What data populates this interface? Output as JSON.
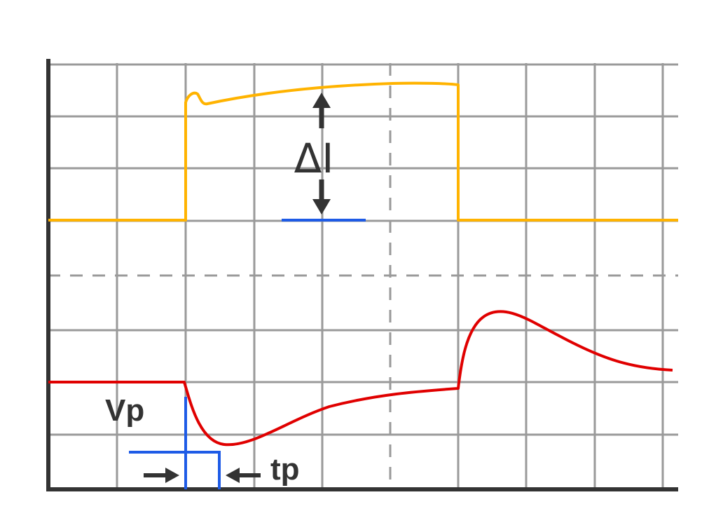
{
  "colors": {
    "current_trace": "#FFB300",
    "voltage_trace": "#E00000",
    "markers": "#1E5BE6",
    "annotation": "#333333",
    "grid": "#9a9a9a"
  },
  "labels": {
    "delta_current": "ΔI",
    "peak_voltage": "Vp",
    "pulse_time": "tp"
  }
}
